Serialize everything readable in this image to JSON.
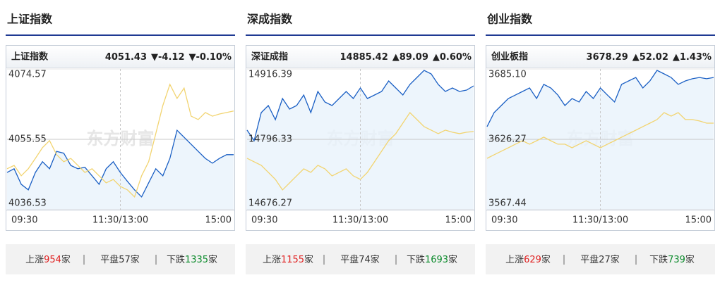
{
  "chart_data": [
    {
      "type": "line",
      "title": "上证指数",
      "name": "上证指数",
      "price": "4051.43",
      "change": "▼-4.12",
      "pct": "▼-0.10%",
      "trend_color": "#0a8a2a",
      "watermark": "东方财富",
      "xticks": [
        "09:30",
        "11:30/13:00",
        "15:00"
      ],
      "ylim": [
        4036.53,
        4074.57
      ],
      "yticks": [
        4074.57,
        4055.55,
        4036.53
      ],
      "grid": true,
      "series": [
        {
          "color": "#1a5fc4",
          "values": [
            4046.6,
            4047.6,
            4043.4,
            4041.9,
            4046.6,
            4049.5,
            4047.6,
            4052.3,
            4051.8,
            4048.5,
            4047.6,
            4048.0,
            4045.7,
            4043.4,
            4047.6,
            4049.5,
            4046.6,
            4044.2,
            4041.9,
            4040.0,
            4043.8,
            4047.6,
            4045.7,
            4050.4,
            4058.0,
            4056.1,
            4054.2,
            4052.3,
            4050.4,
            4049.1,
            4050.4,
            4051.4,
            4051.4
          ]
        },
        {
          "color": "#f2d470",
          "values": [
            4047.6,
            4048.5,
            4045.7,
            4047.6,
            4050.4,
            4053.3,
            4055.2,
            4051.4,
            4049.5,
            4050.4,
            4048.5,
            4046.6,
            4047.6,
            4045.7,
            4043.8,
            4044.7,
            4042.8,
            4041.9,
            4040.0,
            4045.7,
            4049.5,
            4057.1,
            4064.7,
            4070.4,
            4066.6,
            4069.4,
            4061.8,
            4060.9,
            4062.8,
            4061.8,
            4062.4,
            4062.8,
            4063.2
          ]
        }
      ],
      "stats": [
        {
          "label": "上涨",
          "count": "954",
          "unit": "家",
          "color": "#e02020"
        },
        {
          "label": "平盘",
          "count": "57",
          "unit": "家",
          "color": "#333333"
        },
        {
          "label": "下跌",
          "count": "1335",
          "unit": "家",
          "color": "#0a8a2a"
        }
      ]
    },
    {
      "type": "line",
      "title": "深成指数",
      "name": "深证成指",
      "price": "14885.42",
      "change": "▲89.09",
      "pct": "▲0.60%",
      "trend_color": "#e02020",
      "watermark": "东方财富",
      "xticks": [
        "09:30",
        "11:30/13:00",
        "15:00"
      ],
      "ylim": [
        14676.27,
        14916.39
      ],
      "yticks": [
        14916.39,
        14796.33,
        14676.27
      ],
      "grid": true,
      "series": [
        {
          "color": "#1a5fc4",
          "values": [
            14812.0,
            14794.0,
            14842.0,
            14854.0,
            14830.0,
            14866.0,
            14848.0,
            14854.0,
            14872.0,
            14842.0,
            14878.0,
            14860.0,
            14854.0,
            14866.0,
            14878.0,
            14866.0,
            14884.0,
            14866.0,
            14872.0,
            14878.0,
            14896.0,
            14884.0,
            14872.0,
            14890.0,
            14902.0,
            14914.0,
            14908.0,
            14890.0,
            14878.0,
            14884.0,
            14878.0,
            14880.4,
            14887.6
          ]
        },
        {
          "color": "#f2d470",
          "values": [
            14764.0,
            14758.0,
            14752.0,
            14740.0,
            14728.0,
            14710.0,
            14722.0,
            14734.0,
            14746.0,
            14740.0,
            14752.0,
            14746.0,
            14734.0,
            14740.0,
            14746.0,
            14734.0,
            14728.0,
            14740.0,
            14758.0,
            14776.0,
            14794.0,
            14806.0,
            14824.0,
            14842.0,
            14830.0,
            14818.0,
            14812.0,
            14806.0,
            14812.0,
            14808.4,
            14806.0,
            14808.4,
            14809.6
          ]
        }
      ],
      "stats": [
        {
          "label": "上涨",
          "count": "1155",
          "unit": "家",
          "color": "#e02020"
        },
        {
          "label": "平盘",
          "count": "74",
          "unit": "家",
          "color": "#333333"
        },
        {
          "label": "下跌",
          "count": "1693",
          "unit": "家",
          "color": "#0a8a2a"
        }
      ]
    },
    {
      "type": "line",
      "title": "创业指数",
      "name": "创业板指",
      "price": "3678.29",
      "change": "▲52.02",
      "pct": "▲1.43%",
      "trend_color": "#e02020",
      "watermark": "东方财富",
      "xticks": [
        "09:30",
        "11:30/13:00",
        "15:00"
      ],
      "ylim": [
        3567.44,
        3685.1
      ],
      "yticks": [
        {
          "value": 3685.1,
          "label": "3685.10"
        },
        3626.27,
        3567.44
      ],
      "grid": true,
      "series": [
        {
          "color": "#1a5fc4",
          "values": [
            3636.9,
            3648.6,
            3654.5,
            3660.4,
            3663.3,
            3666.3,
            3669.2,
            3660.4,
            3672.2,
            3669.2,
            3663.3,
            3654.5,
            3660.4,
            3657.5,
            3666.3,
            3660.4,
            3669.2,
            3663.3,
            3657.5,
            3672.2,
            3675.1,
            3678.0,
            3669.2,
            3675.1,
            3683.9,
            3681.0,
            3678.0,
            3672.2,
            3675.1,
            3676.9,
            3678.0,
            3676.9,
            3678.0
          ]
        },
        {
          "color": "#f2d470",
          "values": [
            3610.4,
            3613.4,
            3616.3,
            3619.2,
            3622.2,
            3625.1,
            3622.2,
            3625.1,
            3628.1,
            3625.1,
            3622.2,
            3622.2,
            3619.2,
            3622.2,
            3625.1,
            3622.2,
            3619.2,
            3622.2,
            3625.1,
            3628.1,
            3631.0,
            3633.9,
            3636.9,
            3639.8,
            3642.8,
            3648.6,
            3645.7,
            3648.6,
            3642.8,
            3642.8,
            3641.6,
            3639.8,
            3639.8
          ]
        }
      ],
      "stats": [
        {
          "label": "上涨",
          "count": "629",
          "unit": "家",
          "color": "#e02020"
        },
        {
          "label": "平盘",
          "count": "27",
          "unit": "家",
          "color": "#333333"
        },
        {
          "label": "下跌",
          "count": "739",
          "unit": "家",
          "color": "#0a8a2a"
        }
      ]
    }
  ]
}
